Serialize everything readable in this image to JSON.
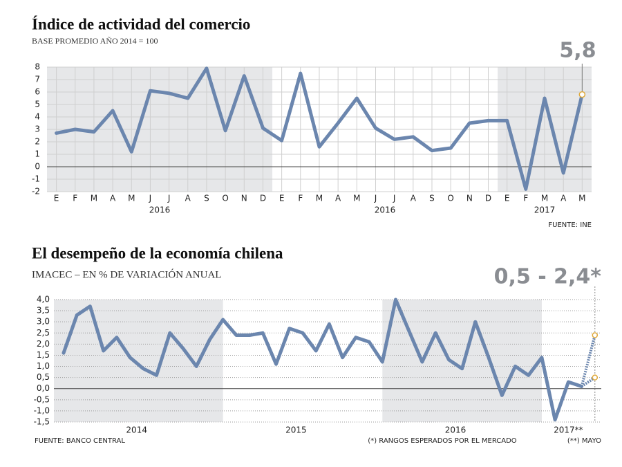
{
  "chart_data": [
    {
      "type": "line",
      "title": "Índice de actividad del comercio",
      "subtitle": "BASE PROMEDIO AÑO 2014 = 100",
      "categories": [
        "E",
        "F",
        "M",
        "A",
        "M",
        "J",
        "J",
        "A",
        "S",
        "O",
        "N",
        "D",
        "E",
        "F",
        "M",
        "A",
        "M",
        "J",
        "J",
        "A",
        "S",
        "O",
        "N",
        "D",
        "E",
        "F",
        "M",
        "A",
        "M"
      ],
      "years": [
        "2016",
        "2016",
        "2017"
      ],
      "values": [
        2.7,
        3.0,
        2.8,
        4.5,
        1.2,
        6.1,
        5.9,
        5.5,
        7.9,
        2.9,
        7.3,
        3.1,
        2.1,
        7.5,
        1.6,
        3.5,
        5.5,
        3.1,
        2.2,
        2.4,
        1.3,
        1.5,
        3.5,
        3.7,
        3.7,
        -1.8,
        5.5,
        -0.5,
        5.8
      ],
      "color": "#6b86ae",
      "ylim": [
        -2,
        8
      ],
      "yticks": [
        -2,
        -1,
        0,
        1,
        2,
        3,
        4,
        5,
        6,
        7,
        8
      ],
      "grid": true,
      "annotation": "5,8",
      "source": "FUENTE: INE"
    },
    {
      "type": "line",
      "title": "El desempeño de la economía chilena",
      "subtitle": "IMACEC – EN % DE VARIACIÓN ANUAL",
      "years": [
        "2014",
        "2015",
        "2016",
        "2017**"
      ],
      "values": [
        1.6,
        3.3,
        3.7,
        1.7,
        2.3,
        1.4,
        0.9,
        0.6,
        2.5,
        1.8,
        1.0,
        2.2,
        3.1,
        2.4,
        2.4,
        2.5,
        1.1,
        2.7,
        2.5,
        1.7,
        2.9,
        1.4,
        2.3,
        2.1,
        1.2,
        4.0,
        2.6,
        1.2,
        2.5,
        1.3,
        0.9,
        3.0,
        1.4,
        -0.3,
        1.0,
        0.6,
        1.4,
        -1.4,
        0.3,
        0.1
      ],
      "forecast": [
        0.5,
        2.4
      ],
      "color": "#6b86ae",
      "ylim": [
        -1.5,
        4
      ],
      "yticks": [
        {
          "value": -1.5,
          "label": "-1,5"
        },
        {
          "value": -1,
          "label": "-1,0"
        },
        {
          "value": -0.5,
          "label": "-0,5"
        },
        {
          "value": 0,
          "label": "0,0"
        },
        {
          "value": 0.5,
          "label": "0,5"
        },
        {
          "value": 1,
          "label": "1,0"
        },
        {
          "value": 1.5,
          "label": "1,5"
        },
        {
          "value": 2,
          "label": "2,0"
        },
        {
          "value": 2.5,
          "label": "2,5"
        },
        {
          "value": 3,
          "label": "3,0"
        },
        {
          "value": 3.5,
          "label": "3,5"
        },
        {
          "value": 4,
          "label": "4,0"
        }
      ],
      "grid": true,
      "annotation": "0,5 - 2,4*",
      "source": "FUENTE: BANCO CENTRAL",
      "notes": [
        "(*) RANGOS ESPERADOS POR EL MERCADO",
        "(**) MAYO"
      ]
    }
  ]
}
